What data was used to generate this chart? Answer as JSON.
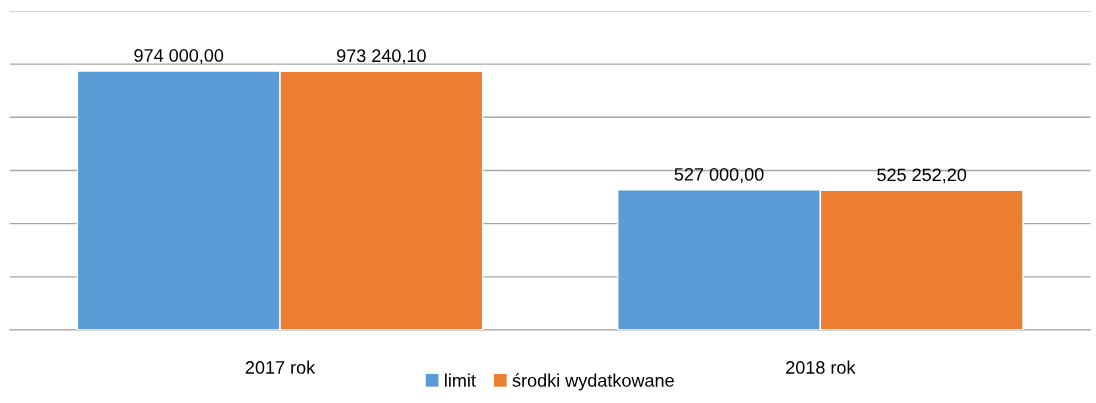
{
  "chart_data": {
    "type": "bar",
    "categories": [
      "2017 rok",
      "2018 rok"
    ],
    "series": [
      {
        "name": "limit",
        "color": "#5b9bd5",
        "values": [
          974000.0,
          527000.0
        ],
        "value_labels": [
          "974 000,00",
          "527 000,00"
        ]
      },
      {
        "name": "środki wydatkowane",
        "color": "#ed7d31",
        "values": [
          973240.1,
          525252.2
        ],
        "value_labels": [
          "973 240,10",
          "525 252,20"
        ]
      }
    ],
    "ylim": [
      0,
      1200000
    ],
    "yticks": [
      {
        "value": 0,
        "label": null
      },
      {
        "value": 200000,
        "label": null
      },
      {
        "value": 400000,
        "label": null
      },
      {
        "value": 600000,
        "label": null
      },
      {
        "value": 800000,
        "label": null
      },
      {
        "value": 1000000,
        "label": null
      },
      {
        "value": 1200000,
        "label": null
      }
    ],
    "tick_labels": "x",
    "grid": "y",
    "legend": "bottom"
  }
}
